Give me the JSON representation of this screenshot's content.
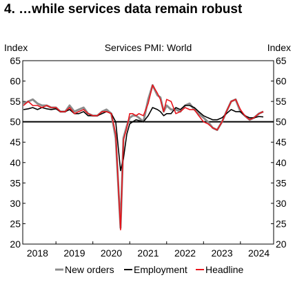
{
  "title": "4. …while services data remain robust",
  "chart_data": {
    "type": "line",
    "subtitle": "Services PMI: World",
    "ylabel_left": "Index",
    "ylabel_right": "Index",
    "ylim": [
      20,
      65
    ],
    "yticks": [
      20,
      25,
      30,
      35,
      40,
      45,
      50,
      55,
      60,
      65
    ],
    "xlim": [
      2017.6,
      2024.4
    ],
    "xtick_labels": [
      {
        "label": "2018",
        "x": 2018.0
      },
      {
        "label": "2019",
        "x": 2019.0
      },
      {
        "label": "2020",
        "x": 2020.0
      },
      {
        "label": "2021",
        "x": 2021.0
      },
      {
        "label": "2022",
        "x": 2022.0
      },
      {
        "label": "2023",
        "x": 2023.0
      },
      {
        "label": "2024",
        "x": 2024.0
      }
    ],
    "reference_line": 50,
    "legend_position": "bottom",
    "series": [
      {
        "name": "New orders",
        "color": "#8c8c8c",
        "x": [
          2017.62,
          2017.75,
          2017.87,
          2018.0,
          2018.12,
          2018.25,
          2018.37,
          2018.5,
          2018.62,
          2018.75,
          2018.87,
          2019.0,
          2019.12,
          2019.25,
          2019.37,
          2019.5,
          2019.62,
          2019.75,
          2019.87,
          2020.0,
          2020.12,
          2020.25,
          2020.33,
          2020.42,
          2020.5,
          2020.58,
          2020.67,
          2020.75,
          2020.87,
          2021.0,
          2021.12,
          2021.25,
          2021.33,
          2021.42,
          2021.5,
          2021.62,
          2021.75,
          2021.87,
          2022.0,
          2022.12,
          2022.25,
          2022.37,
          2022.5,
          2022.62,
          2022.75,
          2022.87,
          2023.0,
          2023.12,
          2023.25,
          2023.37,
          2023.5,
          2023.62,
          2023.75,
          2023.87,
          2024.0,
          2024.12
        ],
        "values": [
          54.5,
          55,
          55.5,
          54.5,
          54,
          54,
          53.5,
          53.5,
          52.5,
          52.5,
          54,
          52.5,
          53,
          53.5,
          52,
          51.5,
          51.5,
          52.5,
          53,
          52,
          46,
          24,
          46,
          49,
          51,
          51.5,
          51.5,
          51,
          50,
          55.5,
          59,
          56.5,
          56,
          52.5,
          54,
          53,
          53,
          52.5,
          54,
          54.5,
          53,
          52,
          51,
          50,
          48.5,
          48,
          50,
          52.5,
          55,
          55.5,
          52.5,
          51.5,
          50.5,
          51,
          52,
          52.5
        ]
      },
      {
        "name": "Employment",
        "color": "#000000",
        "x": [
          2017.62,
          2017.75,
          2017.87,
          2018.0,
          2018.12,
          2018.25,
          2018.37,
          2018.5,
          2018.62,
          2018.75,
          2018.87,
          2019.0,
          2019.12,
          2019.25,
          2019.37,
          2019.5,
          2019.62,
          2019.75,
          2019.87,
          2020.0,
          2020.12,
          2020.25,
          2020.33,
          2020.42,
          2020.5,
          2020.58,
          2020.67,
          2020.75,
          2020.87,
          2021.0,
          2021.12,
          2021.25,
          2021.33,
          2021.42,
          2021.5,
          2021.62,
          2021.75,
          2021.87,
          2022.0,
          2022.12,
          2022.25,
          2022.37,
          2022.5,
          2022.62,
          2022.75,
          2022.87,
          2023.0,
          2023.12,
          2023.25,
          2023.37,
          2023.5,
          2023.62,
          2023.75,
          2023.87,
          2024.0,
          2024.12
        ],
        "values": [
          53,
          53.2,
          53.5,
          53,
          53.5,
          53.2,
          53,
          53.2,
          52.5,
          52.5,
          53,
          52,
          52,
          52.5,
          51.5,
          51.5,
          51.5,
          52,
          52.5,
          52,
          50,
          38,
          41,
          47,
          49.5,
          50,
          50.5,
          50.3,
          50,
          51.5,
          53.5,
          53,
          52.5,
          51.5,
          52,
          52,
          53.5,
          53,
          54,
          54,
          53.5,
          52.5,
          51.5,
          51,
          50.5,
          50.5,
          51,
          52,
          53,
          52.5,
          52.5,
          51.5,
          51,
          51,
          51.3,
          51.2
        ]
      },
      {
        "name": "Headline",
        "color": "#e8141b",
        "x": [
          2017.62,
          2017.75,
          2017.87,
          2018.0,
          2018.12,
          2018.25,
          2018.37,
          2018.5,
          2018.62,
          2018.75,
          2018.87,
          2019.0,
          2019.12,
          2019.25,
          2019.37,
          2019.5,
          2019.62,
          2019.75,
          2019.87,
          2020.0,
          2020.12,
          2020.25,
          2020.33,
          2020.42,
          2020.5,
          2020.58,
          2020.67,
          2020.75,
          2020.87,
          2021.0,
          2021.12,
          2021.25,
          2021.33,
          2021.42,
          2021.5,
          2021.62,
          2021.75,
          2021.87,
          2022.0,
          2022.12,
          2022.25,
          2022.37,
          2022.5,
          2022.62,
          2022.75,
          2022.87,
          2023.0,
          2023.12,
          2023.25,
          2023.37,
          2023.5,
          2023.62,
          2023.75,
          2023.87,
          2024.0,
          2024.12
        ],
        "values": [
          54,
          55,
          54,
          54,
          53.5,
          54,
          53.5,
          53.5,
          52.5,
          52.5,
          53.5,
          52,
          52.5,
          53,
          52,
          51.5,
          51.5,
          52.5,
          52.5,
          52,
          47,
          23.5,
          45.5,
          48.5,
          52,
          52,
          51.5,
          52,
          51.5,
          54.5,
          59,
          57,
          55.5,
          52.5,
          55.5,
          55,
          52,
          52.5,
          53.5,
          53,
          53,
          51.5,
          50,
          49.5,
          48.5,
          48,
          50,
          52.5,
          55,
          55.5,
          53,
          51.5,
          50.5,
          51,
          52,
          52.5
        ]
      }
    ]
  }
}
